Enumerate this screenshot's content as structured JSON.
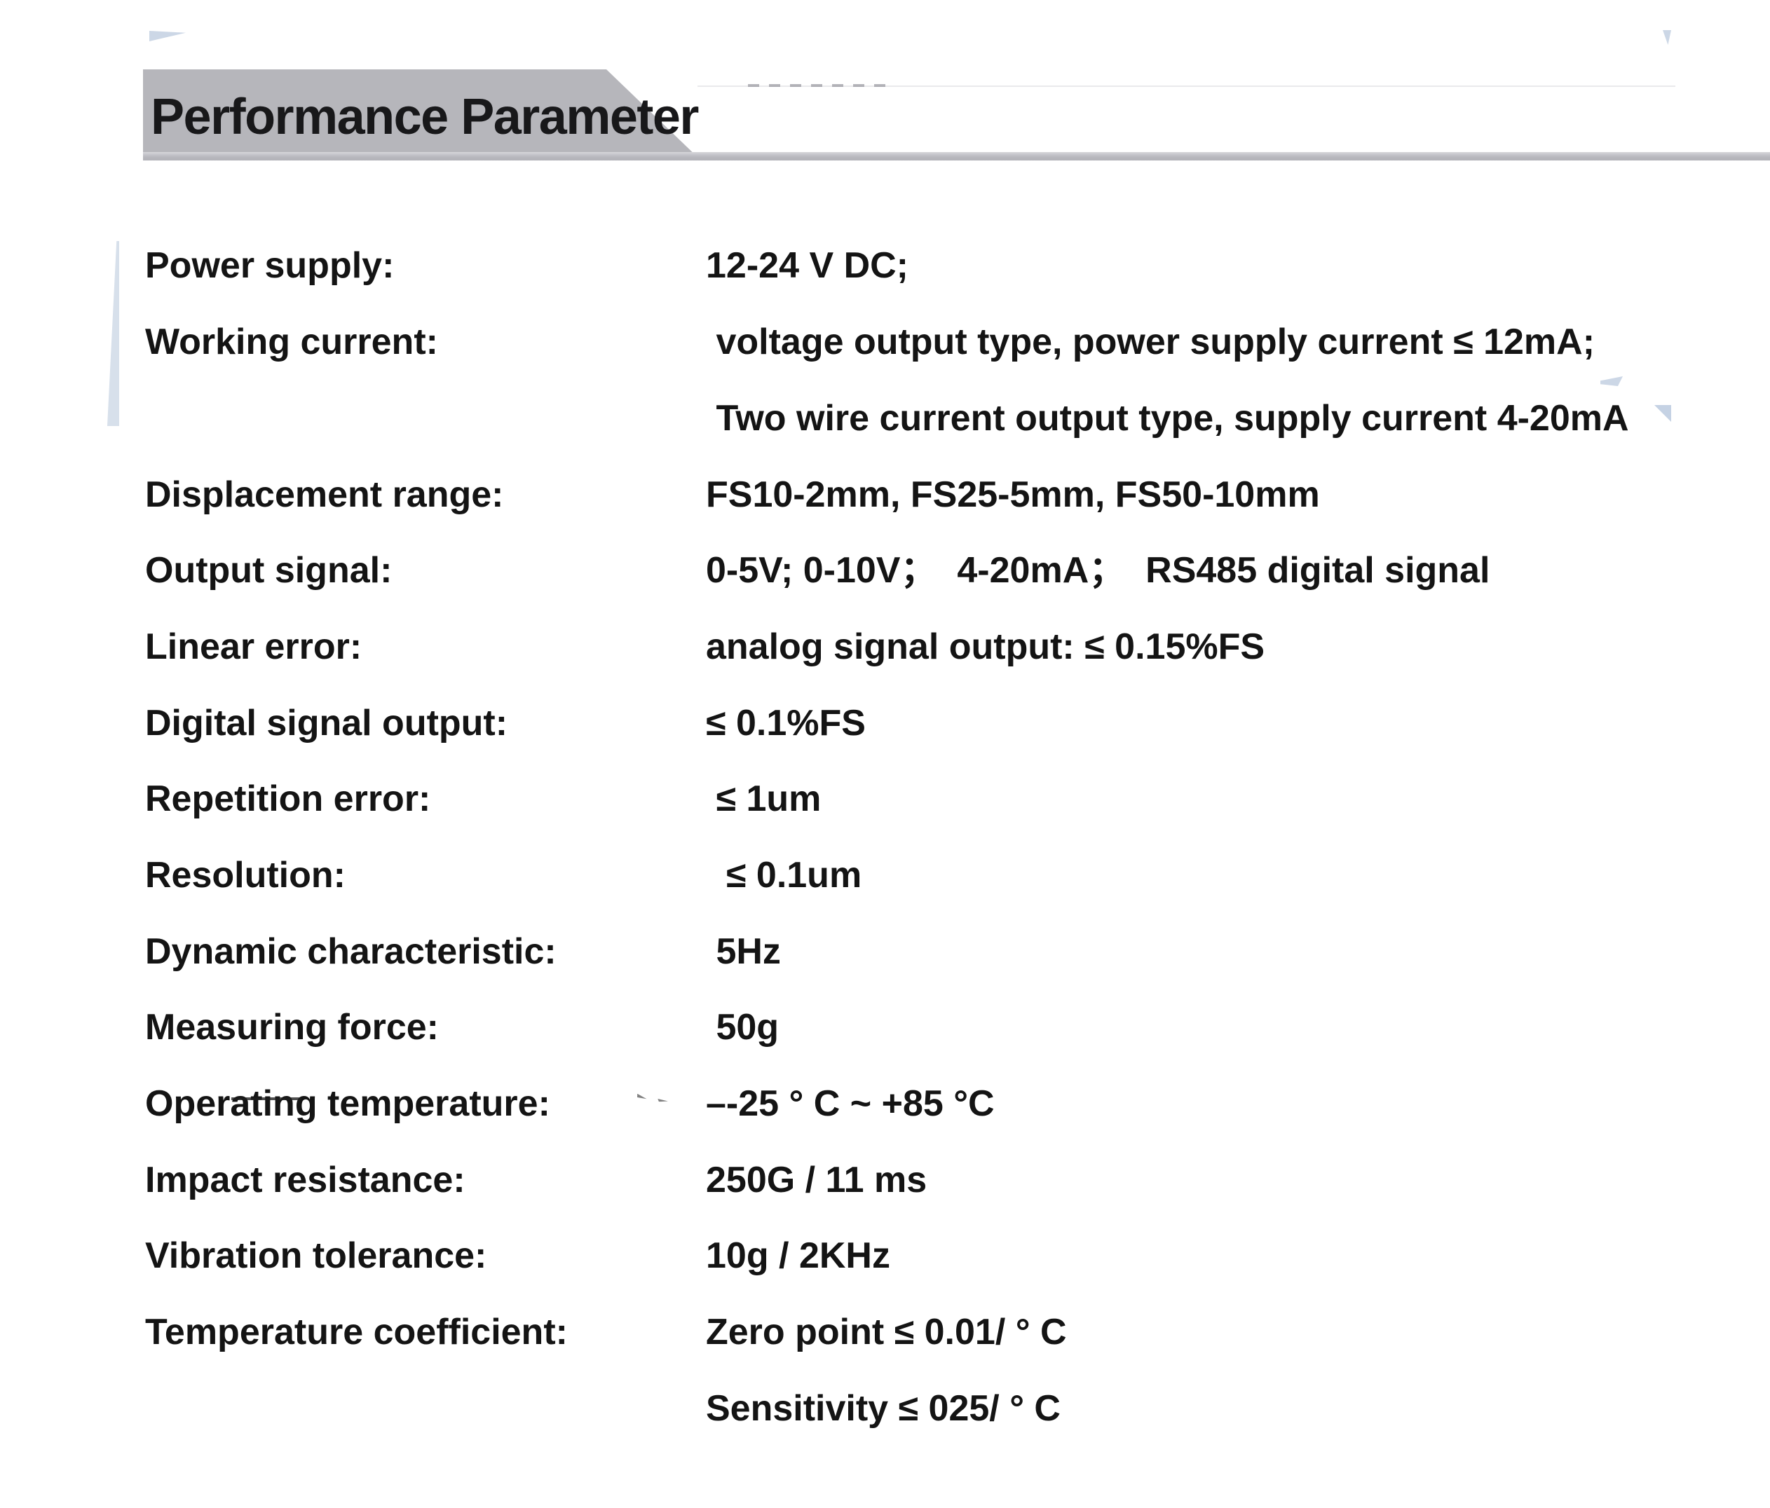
{
  "header": {
    "title": "Performance Parameter",
    "banner_color": "#b6b6bb",
    "strip_color": "#b9b9bf"
  },
  "decor": {
    "accent_color": "#ccd7e6",
    "artifact_shapes": [
      "top-left-wedge",
      "top-right-sliver",
      "mid-right-wedge-a",
      "mid-right-wedge-b",
      "left-vertical-stripe",
      "strikethrough-mark",
      "tick-marks"
    ]
  },
  "parameters": [
    {
      "label": "Power supply:",
      "value": "12-24 V DC;"
    },
    {
      "label": "Working current:",
      "value": " voltage output type, power supply current ≤ 12mA;"
    },
    {
      "label": "",
      "value": " Two wire current output type, supply current 4-20mA"
    },
    {
      "label": "Displacement range:",
      "value": "FS10-2mm, FS25-5mm, FS50-10mm"
    },
    {
      "label": "Output signal:",
      "value": "0-5V; 0-10V；  4-20mA；  RS485 digital signal"
    },
    {
      "label": "Linear error:",
      "value": "analog signal output: ≤ 0.15%FS"
    },
    {
      "label": "Digital signal output:",
      "value": "≤ 0.1%FS"
    },
    {
      "label": "Repetition error:",
      "value": " ≤ 1um"
    },
    {
      "label": "Resolution:",
      "value": "  ≤ 0.1um"
    },
    {
      "label": "Dynamic characteristic:",
      "value": " 5Hz"
    },
    {
      "label": "Measuring force:",
      "value": " 50g"
    },
    {
      "label": "Operating temperature:",
      "value": "–-25 ° C ~ +85 °C"
    },
    {
      "label": "Impact resistance:",
      "value": "250G / 11 ms"
    },
    {
      "label": "Vibration tolerance:",
      "value": "10g / 2KHz"
    },
    {
      "label": "Temperature coefficient:",
      "value": "Zero point ≤ 0.01/ ° C"
    },
    {
      "label": "",
      "value": "Sensitivity ≤ 025/ ° C"
    }
  ]
}
